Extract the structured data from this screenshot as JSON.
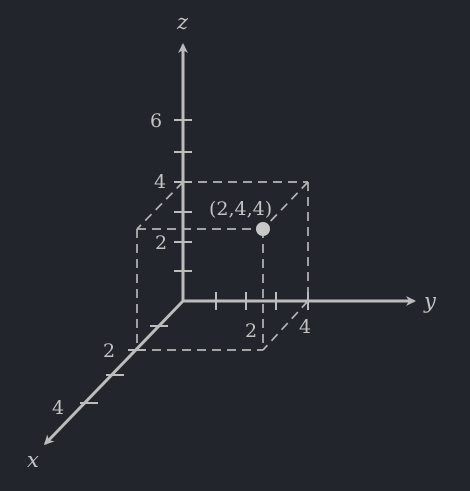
{
  "diagram": {
    "type": "3d-coordinate-plot",
    "axes": {
      "x": {
        "name": "x",
        "tick_labels": [
          "2",
          "4"
        ]
      },
      "y": {
        "name": "y",
        "tick_labels": [
          "2",
          "4"
        ]
      },
      "z": {
        "name": "z",
        "tick_labels": [
          "2",
          "4",
          "6"
        ]
      }
    },
    "point": {
      "coordinates": [
        2,
        4,
        4
      ],
      "label": "(2,4,4)"
    },
    "box_corner": [
      2,
      4,
      4
    ]
  },
  "colors": {
    "background": "#22252c",
    "ink": "#bcbcbc",
    "point": "#c8c8c8"
  }
}
